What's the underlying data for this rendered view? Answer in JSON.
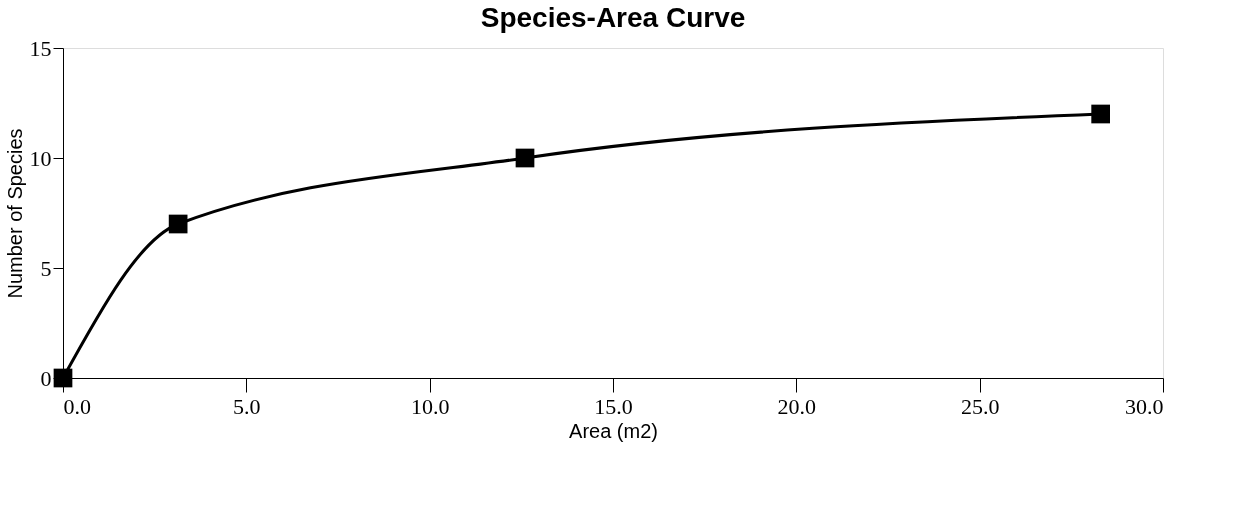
{
  "chart_data": {
    "type": "line",
    "title": "Species-Area Curve",
    "xlabel": "Area (m2)",
    "ylabel": "Number of Species",
    "x": [
      0,
      3.14,
      12.6,
      28.3
    ],
    "series": [
      {
        "color": "#000000",
        "values": [
          0,
          7,
          10,
          12
        ]
      }
    ],
    "xlim": [
      0,
      30
    ],
    "xticks": [
      {
        "value": 0,
        "label": "0.0"
      },
      {
        "value": 5,
        "label": "5.0"
      },
      {
        "value": 10,
        "label": "10.0"
      },
      {
        "value": 15,
        "label": "15.0"
      },
      {
        "value": 20,
        "label": "20.0"
      },
      {
        "value": 25,
        "label": "25.0"
      },
      {
        "value": 30,
        "label": "30.0"
      }
    ],
    "ylim": [
      0,
      15
    ],
    "yticks": [
      0,
      5,
      10,
      15
    ],
    "marker": "square",
    "grid": false
  }
}
